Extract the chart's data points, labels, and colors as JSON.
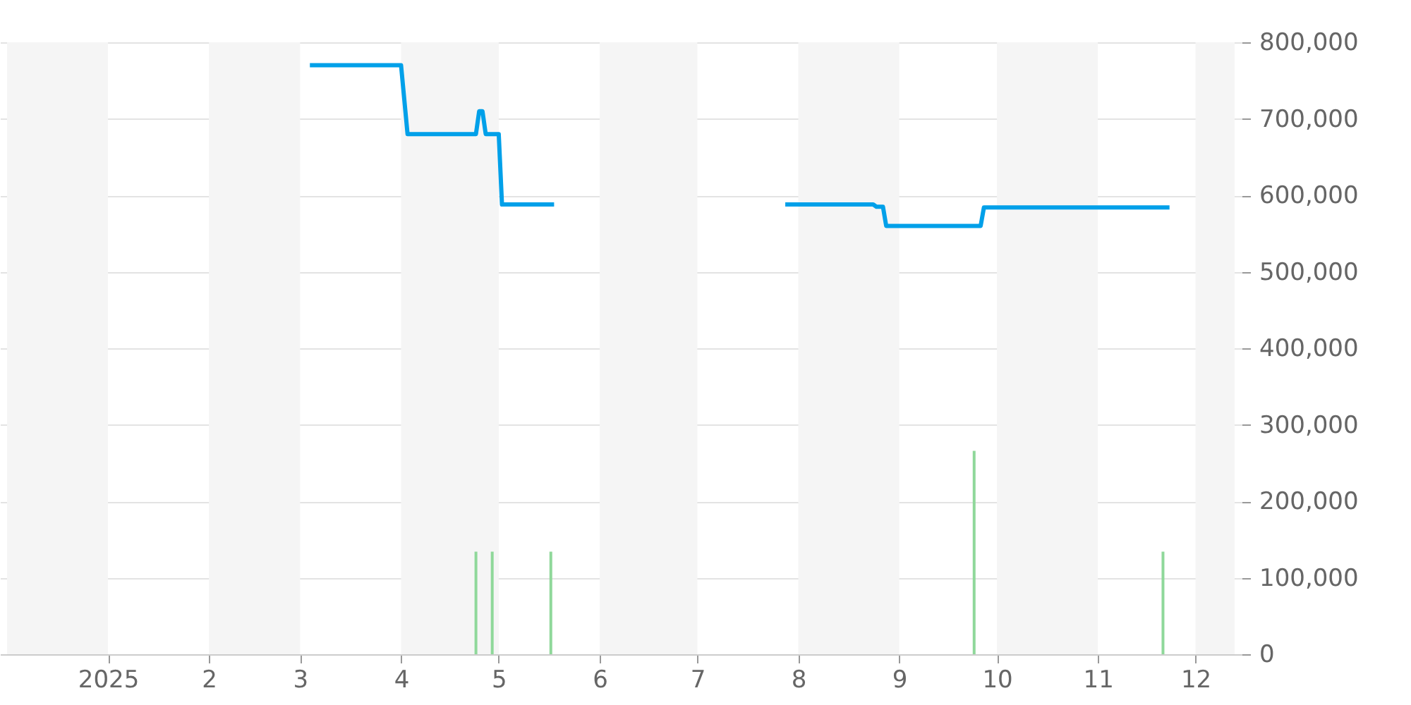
{
  "chart_data": {
    "type": "line",
    "xlim": [
      "2024-12-01",
      "2025-12-13"
    ],
    "xticks": [
      {
        "value": "2025-01-01",
        "label": "2025"
      },
      {
        "value": "2025-02-01",
        "label": "2"
      },
      {
        "value": "2025-03-01",
        "label": "3"
      },
      {
        "value": "2025-04-01",
        "label": "4"
      },
      {
        "value": "2025-05-01",
        "label": "5"
      },
      {
        "value": "2025-06-01",
        "label": "6"
      },
      {
        "value": "2025-07-01",
        "label": "7"
      },
      {
        "value": "2025-08-01",
        "label": "8"
      },
      {
        "value": "2025-09-01",
        "label": "9"
      },
      {
        "value": "2025-10-01",
        "label": "10"
      },
      {
        "value": "2025-11-01",
        "label": "11"
      },
      {
        "value": "2025-12-01",
        "label": "12"
      }
    ],
    "ylim": [
      0,
      800000
    ],
    "yticks": [
      0,
      {
        "value": 100000,
        "label": "100,000"
      },
      {
        "value": 200000,
        "label": "200,000"
      },
      {
        "value": 300000,
        "label": "300,000"
      },
      {
        "value": 400000,
        "label": "400,000"
      },
      {
        "value": 500000,
        "label": "500,000"
      },
      {
        "value": 600000,
        "label": "600,000"
      },
      {
        "value": 700000,
        "label": "700,000"
      },
      {
        "value": 800000,
        "label": "800,000"
      }
    ],
    "grid": "y",
    "bands": [
      {
        "axis": "x",
        "from": "2024-12-01",
        "to": "2025-01-01",
        "color": "#f5f5f5"
      },
      {
        "axis": "x",
        "from": "2025-02-01",
        "to": "2025-03-01",
        "color": "#f5f5f5"
      },
      {
        "axis": "x",
        "from": "2025-04-01",
        "to": "2025-05-01",
        "color": "#f5f5f5"
      },
      {
        "axis": "x",
        "from": "2025-06-01",
        "to": "2025-07-01",
        "color": "#f5f5f5"
      },
      {
        "axis": "x",
        "from": "2025-08-01",
        "to": "2025-09-01",
        "color": "#f5f5f5"
      },
      {
        "axis": "x",
        "from": "2025-10-01",
        "to": "2025-11-01",
        "color": "#f5f5f5"
      },
      {
        "axis": "x",
        "from": "2025-12-01",
        "to": "2025-12-13",
        "color": "#f5f5f5"
      }
    ],
    "series": [
      {
        "type": "bar",
        "color": "#8fd89a",
        "x": [
          "2025-04-24",
          "2025-04-29",
          "2025-05-17",
          "2025-09-24",
          "2025-11-21"
        ],
        "values": [
          134000,
          134000,
          134000,
          266000,
          134000
        ]
      },
      {
        "color": "#00a0e9",
        "x": [
          "2025-03-04",
          "2025-04-01",
          "2025-04-03",
          "2025-04-24",
          "2025-04-25",
          "2025-04-26",
          "2025-04-27",
          "2025-05-01",
          "2025-05-02",
          "2025-05-18",
          "2025-06-20",
          "2025-07-28",
          "2025-08-24",
          "2025-08-25",
          "2025-08-27",
          "2025-08-28",
          "2025-09-26",
          "2025-09-27",
          "2025-11-23"
        ],
        "values": [
          770000,
          770000,
          680000,
          680000,
          710000,
          710000,
          680000,
          680000,
          588000,
          588000,
          null,
          588000,
          588000,
          585000,
          585000,
          560000,
          560000,
          584000,
          584000
        ]
      }
    ]
  }
}
